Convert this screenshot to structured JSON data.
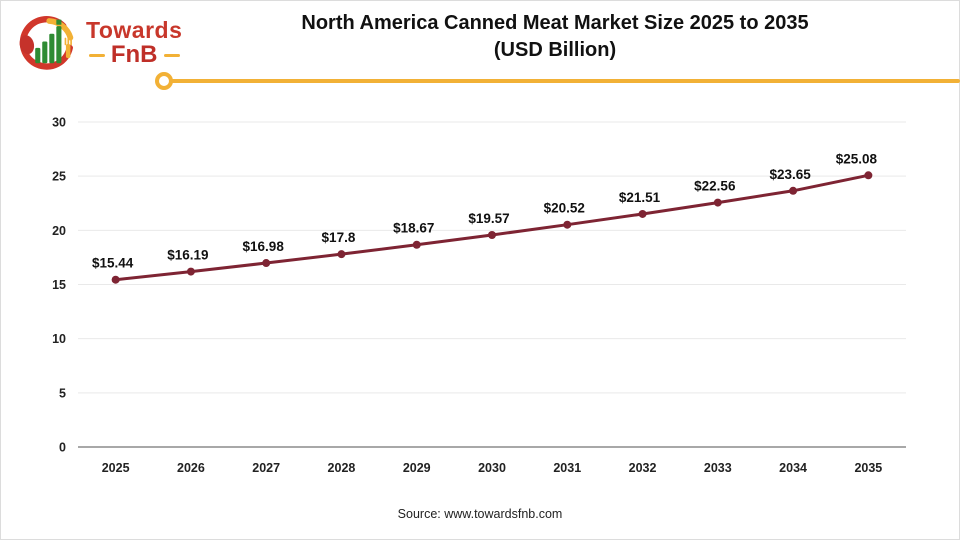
{
  "header": {
    "logo": {
      "line1": "Towards",
      "line2": "FnB"
    },
    "title_line1": "North America Canned Meat Market Size 2025 to 2035",
    "title_line2": "(USD Billion)"
  },
  "footer": {
    "source": "Source: www.towardsfnb.com"
  },
  "colors": {
    "series_line": "#7e2433",
    "marker": "#7e2433",
    "grid": "#e9e9e9",
    "axis_baseline": "#a8a8a8",
    "divider_yellow": "#f2b136",
    "logo_red": "#c8372b",
    "logo_green": "#2e8b33",
    "logo_yellow": "#f2b136",
    "title_text": "#111111"
  },
  "chart_data": {
    "type": "line",
    "title": "North America Canned Meat Market Size 2025 to 2035 (USD Billion)",
    "categories": [
      "2025",
      "2026",
      "2027",
      "2028",
      "2029",
      "2030",
      "2031",
      "2032",
      "2033",
      "2034",
      "2035"
    ],
    "values": [
      15.44,
      16.19,
      16.98,
      17.8,
      18.67,
      19.57,
      20.52,
      21.51,
      22.56,
      23.65,
      25.08
    ],
    "point_labels": [
      "$15.44",
      "$16.19",
      "$16.98",
      "$17.8",
      "$18.67",
      "$19.57",
      "$20.52",
      "$21.51",
      "$22.56",
      "$23.65",
      "$25.08"
    ],
    "xlabel": "",
    "ylabel": "",
    "ylim": [
      0,
      30
    ],
    "yticks": [
      0,
      5,
      10,
      15,
      20,
      25,
      30
    ],
    "grid": "horizontal",
    "legend": "none",
    "source": "Source: www.towardsfnb.com"
  }
}
